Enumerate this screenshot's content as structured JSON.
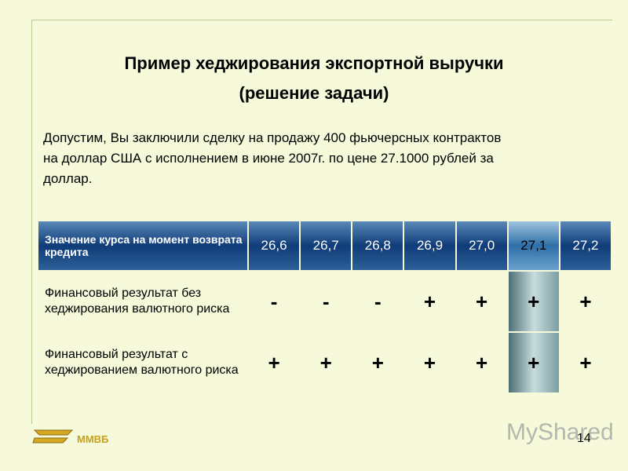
{
  "title": {
    "line1": "Пример  хеджирования экспортной выручки",
    "line2": "(решение задачи)"
  },
  "paragraph": [
    "Допустим, Вы заключили сделку на продажу 400 фьючерсных контрактов",
    "на доллар США с исполнением в июне 2007г. по цене 27.1000 рублей за",
    "доллар."
  ],
  "table": {
    "header": [
      "Значение курса на момент возврата кредита",
      "26,6",
      "26,7",
      "26,8",
      "26,9",
      "27,0",
      "27,1",
      "27,2"
    ],
    "rows": [
      [
        "Финансовый результат без хеджирования валютного риска",
        "-",
        "-",
        "-",
        "+",
        "+",
        "+",
        "+"
      ],
      [
        "Финансовый результат с хеджированием валютного риска",
        "+",
        "+",
        "+",
        "+",
        "+",
        "+",
        "+"
      ]
    ]
  },
  "footer": {
    "logo_text": "ММВБ",
    "watermark": "MyShared",
    "page_number": "14"
  }
}
